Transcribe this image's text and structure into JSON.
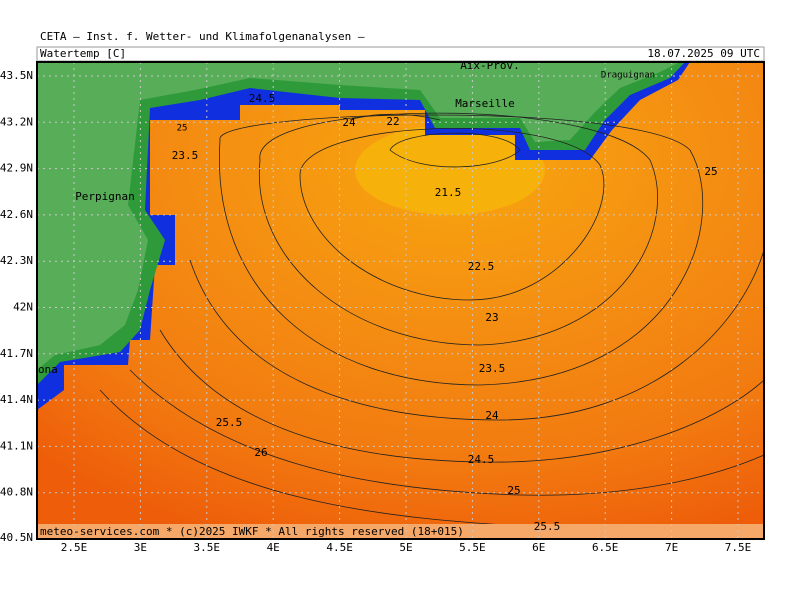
{
  "header": {
    "title": "CETA — Inst. f. Wetter- und Klimafolgenanalysen —",
    "parameter": "Watertemp [C]",
    "valid_time": "18.07.2025 09 UTC"
  },
  "axes": {
    "latitude": [
      "43.5N",
      "43.2N",
      "42.9N",
      "42.6N",
      "42.3N",
      "42N",
      "41.7N",
      "41.4N",
      "41.1N",
      "40.8N",
      "40.5N"
    ],
    "longitude": [
      "2.5E",
      "3E",
      "3.5E",
      "4E",
      "4.5E",
      "5E",
      "5.5E",
      "6E",
      "6.5E",
      "7E",
      "7.5E"
    ]
  },
  "places": [
    "Aix-Prov.",
    "Marseille",
    "Draguignan",
    "Perpignan",
    "Barcelona"
  ],
  "contour_labels": [
    "24.5",
    "24",
    "22",
    "25",
    "21.5",
    "22.5",
    "23",
    "23.5",
    "24",
    "24.5",
    "25",
    "25.5",
    "25.5",
    "26",
    "23.5",
    "25"
  ],
  "footer": "meteo-services.com * (c)2025 IWKF * All rights reserved (18+015)"
}
